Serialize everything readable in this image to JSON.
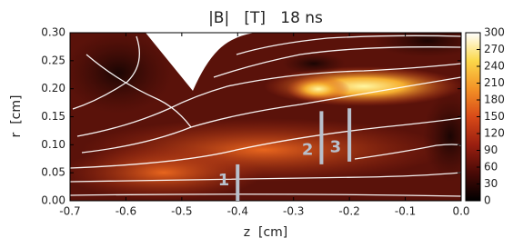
{
  "chart_data": {
    "type": "heatmap",
    "title": "|B|   [T]   18 ns",
    "xlabel": "z  [cm]",
    "ylabel": "r  [cm]",
    "xlim": [
      -0.7,
      0.0
    ],
    "xticks": [
      -0.7,
      -0.6,
      -0.5,
      -0.4,
      -0.3,
      -0.2,
      -0.1,
      {
        "value": 0,
        "label": "0.0"
      }
    ],
    "ylim": [
      0,
      0.3
    ],
    "yticks": [
      {
        "value": 0,
        "label": "0.00"
      },
      0.05,
      {
        "value": 0.1,
        "label": "0.10"
      },
      0.15,
      {
        "value": 0.2,
        "label": "0.20"
      },
      0.25,
      {
        "value": 0.3,
        "label": "0.30"
      }
    ],
    "colorbar": {
      "clim": [
        0,
        300
      ],
      "ticks": [
        0,
        30,
        60,
        90,
        120,
        150,
        180,
        210,
        240,
        270,
        300
      ],
      "colors": [
        "#000000",
        "#4a0a06",
        "#9a1f10",
        "#d84a18",
        "#f39226",
        "#fbd84a",
        "#ffffff"
      ]
    },
    "annotations": [
      {
        "label": "1",
        "z": -0.4,
        "r": [
          0,
          0.065
        ]
      },
      {
        "label": "2",
        "z": -0.25,
        "r": [
          0.065,
          0.16
        ]
      },
      {
        "label": "3",
        "z": -0.2,
        "r": [
          0.07,
          0.165
        ]
      }
    ],
    "annotation_color": "#b8c0cc"
  }
}
